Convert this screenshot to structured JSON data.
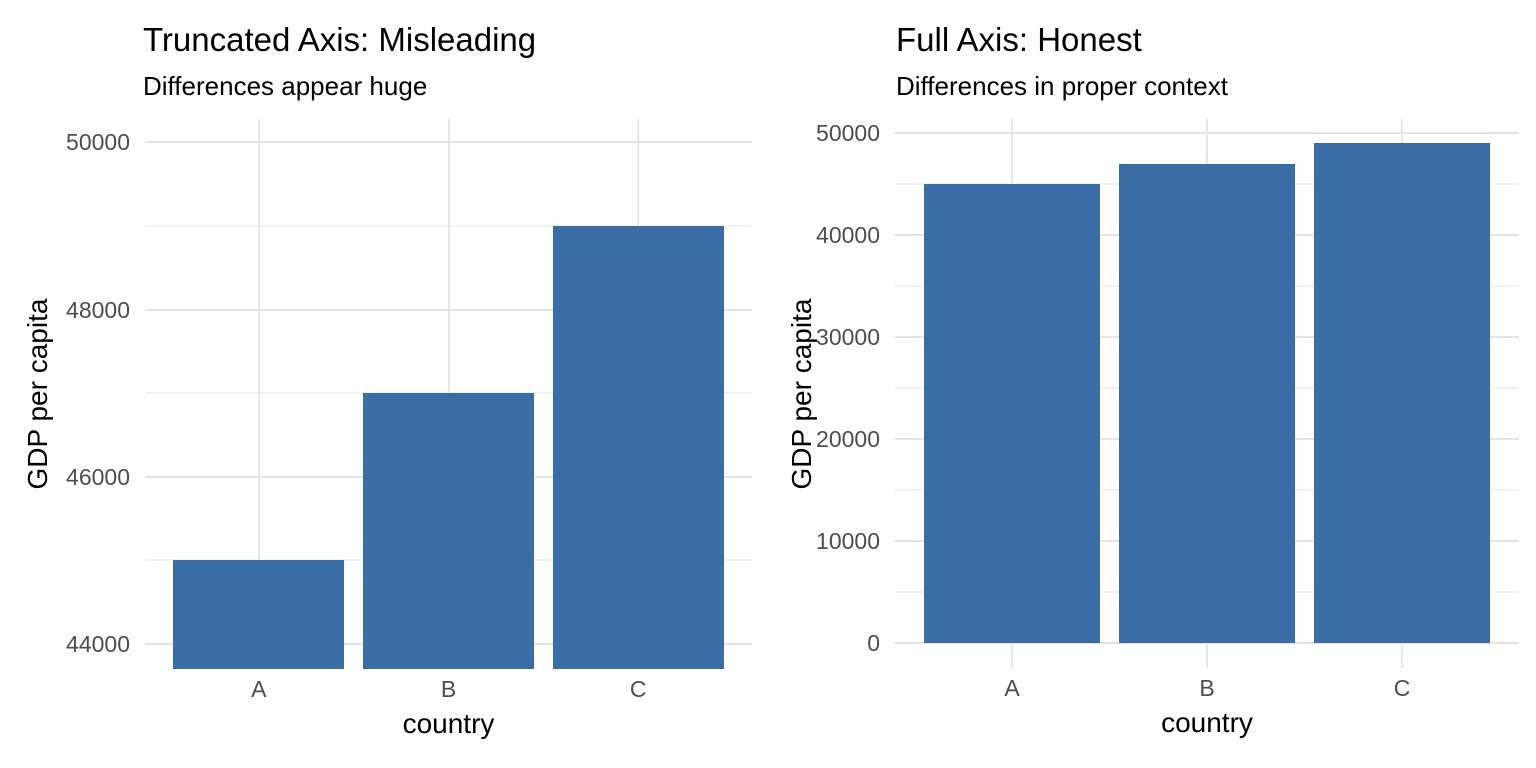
{
  "page": {
    "background": "#FFFFFF"
  },
  "style": {
    "bar_color": "#3A6DA6",
    "grid_major_color": "#E4E4E4",
    "grid_minor_color": "#F2F2F2",
    "grid_vertical_color": "#E7E7E7",
    "tick_label_color": "#4D4D4D",
    "title_color": "#000000"
  },
  "chart_data": [
    {
      "type": "bar",
      "title": "Truncated Axis: Misleading",
      "subtitle": "Differences appear huge",
      "xlabel": "country",
      "ylabel": "GDP per capita",
      "categories": [
        "A",
        "B",
        "C"
      ],
      "values": [
        45000,
        47000,
        49000
      ],
      "ylim": [
        43700,
        50280
      ],
      "yticks": [
        44000,
        46000,
        48000,
        50000
      ],
      "yticks_minor": [
        45000,
        47000,
        49000
      ],
      "grid": true,
      "legend": false,
      "axis_truncated": true,
      "bar_color": "#3A6DA6"
    },
    {
      "type": "bar",
      "title": "Full Axis: Honest",
      "subtitle": "Differences in proper context",
      "xlabel": "country",
      "ylabel": "GDP per capita",
      "categories": [
        "A",
        "B",
        "C"
      ],
      "values": [
        45000,
        47000,
        49000
      ],
      "ylim": [
        -2450,
        51370
      ],
      "yticks": [
        0,
        10000,
        20000,
        30000,
        40000,
        50000
      ],
      "yticks_minor": [
        5000,
        15000,
        25000,
        35000,
        45000
      ],
      "grid": true,
      "legend": false,
      "axis_truncated": false,
      "bar_color": "#3A6DA6"
    }
  ]
}
